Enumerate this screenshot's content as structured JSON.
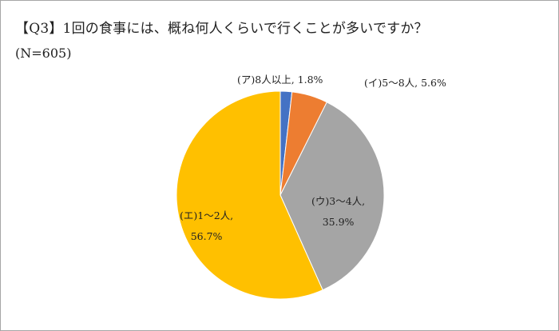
{
  "title": "【Q3】1回の食事には、概ね何人くらいで行くことが多いですか？",
  "subtitle": "(N=605)",
  "chart_data": {
    "type": "pie",
    "title": "【Q3】1回の食事には、概ね何人くらいで行くことが多いですか？",
    "subtitle": "(N=605)",
    "n": 605,
    "categories": [
      "(ア)8人以上",
      "(イ)5〜8人",
      "(ウ)3〜4人",
      "(エ)1〜2人"
    ],
    "values": [
      1.8,
      5.6,
      35.9,
      56.7
    ],
    "unit": "%",
    "colors": [
      "#4472c4",
      "#ed7d31",
      "#a5a5a5",
      "#ffc000"
    ],
    "start_angle": "12 o'clock",
    "direction": "clockwise",
    "legend": "none (data labels)"
  },
  "labels": {
    "a": "(ア)8人以上, 1.8%",
    "i": "(イ)5～8人, 5.6%",
    "u_line1": "(ウ)3～4人,",
    "u_line2": "35.9%",
    "e_line1": "(エ)1～2人,",
    "e_line2": "56.7%"
  }
}
